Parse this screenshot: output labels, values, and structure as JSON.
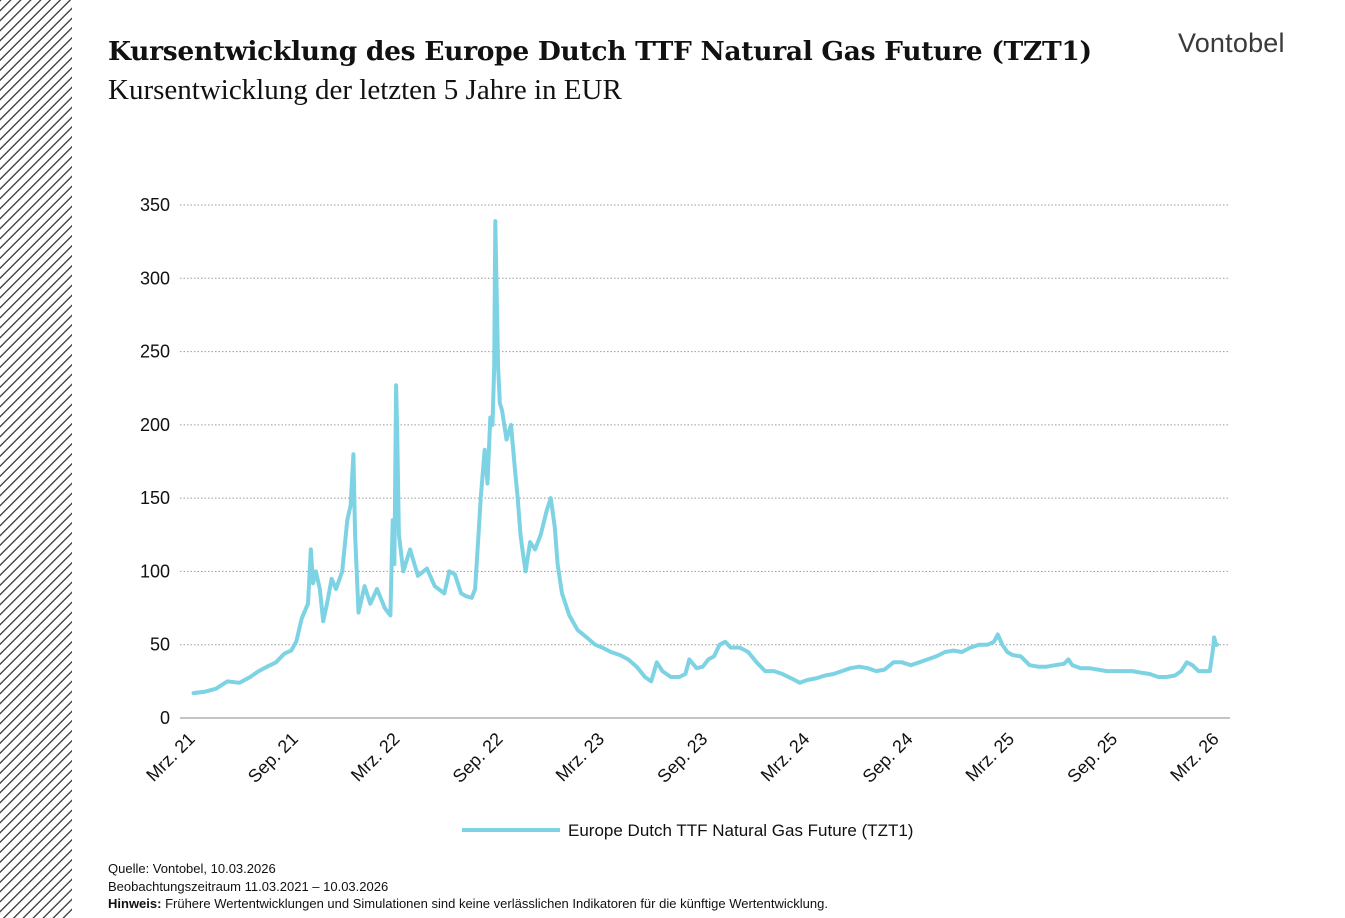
{
  "header": {
    "title": "Kursentwicklung des Europe Dutch TTF Natural Gas Future (TZT1)",
    "subtitle": "Kursentwicklung der letzten 5 Jahre in EUR",
    "logo": "Vontobel"
  },
  "footer": {
    "source": "Quelle: Vontobel, 10.03.2026",
    "period": "Beobachtungszeitraum  11.03.2021 – 10.03.2026",
    "note_label": "Hinweis:",
    "note_text": " Frühere Wertentwicklungen und Simulationen sind keine verlässlichen Indikatoren für die künftige Wertentwicklung."
  },
  "chart_data": {
    "type": "line",
    "title": "",
    "xlabel": "",
    "ylabel": "",
    "ylim": [
      0,
      350
    ],
    "yticks": [
      0,
      50,
      100,
      150,
      200,
      250,
      300,
      350
    ],
    "xticks": [
      {
        "date": "2021-03-01",
        "label": "Mrz. 21"
      },
      {
        "date": "2021-09-01",
        "label": "Sep. 21"
      },
      {
        "date": "2022-03-01",
        "label": "Mrz. 22"
      },
      {
        "date": "2022-09-01",
        "label": "Sep. 22"
      },
      {
        "date": "2023-03-01",
        "label": "Mrz. 23"
      },
      {
        "date": "2023-09-01",
        "label": "Sep. 23"
      },
      {
        "date": "2024-03-01",
        "label": "Mrz. 24"
      },
      {
        "date": "2024-09-01",
        "label": "Sep. 24"
      },
      {
        "date": "2025-03-01",
        "label": "Mrz. 25"
      },
      {
        "date": "2025-09-01",
        "label": "Sep. 25"
      },
      {
        "date": "2026-03-01",
        "label": "Mrz. 26"
      }
    ],
    "grid": "horizontal dotted",
    "legend_position": "bottom-center",
    "series": [
      {
        "name": "Europe Dutch TTF Natural Gas Future (TZT1)",
        "color": "#7dd3e3",
        "points": [
          [
            "2021-03-11",
            17
          ],
          [
            "2021-04-01",
            18
          ],
          [
            "2021-04-20",
            20
          ],
          [
            "2021-05-10",
            25
          ],
          [
            "2021-06-01",
            24
          ],
          [
            "2021-06-20",
            28
          ],
          [
            "2021-07-05",
            32
          ],
          [
            "2021-07-20",
            35
          ],
          [
            "2021-08-05",
            38
          ],
          [
            "2021-08-20",
            44
          ],
          [
            "2021-09-01",
            46
          ],
          [
            "2021-09-10",
            52
          ],
          [
            "2021-09-20",
            68
          ],
          [
            "2021-10-01",
            78
          ],
          [
            "2021-10-06",
            115
          ],
          [
            "2021-10-10",
            92
          ],
          [
            "2021-10-15",
            100
          ],
          [
            "2021-10-22",
            88
          ],
          [
            "2021-10-28",
            66
          ],
          [
            "2021-11-05",
            80
          ],
          [
            "2021-11-12",
            95
          ],
          [
            "2021-11-20",
            88
          ],
          [
            "2021-12-01",
            100
          ],
          [
            "2021-12-10",
            135
          ],
          [
            "2021-12-16",
            145
          ],
          [
            "2021-12-21",
            180
          ],
          [
            "2021-12-24",
            125
          ],
          [
            "2021-12-30",
            72
          ],
          [
            "2022-01-10",
            90
          ],
          [
            "2022-01-20",
            78
          ],
          [
            "2022-02-01",
            88
          ],
          [
            "2022-02-15",
            75
          ],
          [
            "2022-02-25",
            70
          ],
          [
            "2022-03-01",
            135
          ],
          [
            "2022-03-04",
            105
          ],
          [
            "2022-03-07",
            227
          ],
          [
            "2022-03-09",
            195
          ],
          [
            "2022-03-12",
            125
          ],
          [
            "2022-03-20",
            100
          ],
          [
            "2022-04-01",
            115
          ],
          [
            "2022-04-15",
            97
          ],
          [
            "2022-05-01",
            102
          ],
          [
            "2022-05-15",
            90
          ],
          [
            "2022-06-01",
            85
          ],
          [
            "2022-06-10",
            100
          ],
          [
            "2022-06-20",
            98
          ],
          [
            "2022-07-01",
            85
          ],
          [
            "2022-07-10",
            83
          ],
          [
            "2022-07-20",
            82
          ],
          [
            "2022-07-26",
            88
          ],
          [
            "2022-08-01",
            125
          ],
          [
            "2022-08-05",
            150
          ],
          [
            "2022-08-12",
            183
          ],
          [
            "2022-08-17",
            160
          ],
          [
            "2022-08-22",
            205
          ],
          [
            "2022-08-26",
            200
          ],
          [
            "2022-08-29",
            240
          ],
          [
            "2022-08-31",
            339
          ],
          [
            "2022-09-02",
            300
          ],
          [
            "2022-09-05",
            240
          ],
          [
            "2022-09-08",
            215
          ],
          [
            "2022-09-12",
            210
          ],
          [
            "2022-09-20",
            190
          ],
          [
            "2022-09-28",
            200
          ],
          [
            "2022-10-05",
            170
          ],
          [
            "2022-10-10",
            150
          ],
          [
            "2022-10-15",
            125
          ],
          [
            "2022-10-20",
            110
          ],
          [
            "2022-10-24",
            100
          ],
          [
            "2022-11-01",
            120
          ],
          [
            "2022-11-10",
            115
          ],
          [
            "2022-11-20",
            125
          ],
          [
            "2022-12-01",
            142
          ],
          [
            "2022-12-08",
            150
          ],
          [
            "2022-12-15",
            130
          ],
          [
            "2022-12-20",
            105
          ],
          [
            "2022-12-28",
            85
          ],
          [
            "2023-01-10",
            70
          ],
          [
            "2023-01-25",
            60
          ],
          [
            "2023-02-10",
            55
          ],
          [
            "2023-02-25",
            50
          ],
          [
            "2023-03-10",
            48
          ],
          [
            "2023-03-25",
            45
          ],
          [
            "2023-04-10",
            43
          ],
          [
            "2023-04-25",
            40
          ],
          [
            "2023-05-10",
            35
          ],
          [
            "2023-05-25",
            28
          ],
          [
            "2023-06-05",
            25
          ],
          [
            "2023-06-15",
            38
          ],
          [
            "2023-06-25",
            32
          ],
          [
            "2023-07-10",
            28
          ],
          [
            "2023-07-25",
            28
          ],
          [
            "2023-08-05",
            30
          ],
          [
            "2023-08-12",
            40
          ],
          [
            "2023-08-25",
            34
          ],
          [
            "2023-09-05",
            35
          ],
          [
            "2023-09-15",
            40
          ],
          [
            "2023-09-25",
            42
          ],
          [
            "2023-10-05",
            50
          ],
          [
            "2023-10-15",
            52
          ],
          [
            "2023-10-25",
            48
          ],
          [
            "2023-11-10",
            48
          ],
          [
            "2023-11-25",
            45
          ],
          [
            "2023-12-10",
            38
          ],
          [
            "2023-12-25",
            32
          ],
          [
            "2024-01-10",
            32
          ],
          [
            "2024-01-25",
            30
          ],
          [
            "2024-02-10",
            27
          ],
          [
            "2024-02-25",
            24
          ],
          [
            "2024-03-10",
            26
          ],
          [
            "2024-03-25",
            27
          ],
          [
            "2024-04-10",
            29
          ],
          [
            "2024-04-25",
            30
          ],
          [
            "2024-05-10",
            32
          ],
          [
            "2024-05-25",
            34
          ],
          [
            "2024-06-10",
            35
          ],
          [
            "2024-06-25",
            34
          ],
          [
            "2024-07-10",
            32
          ],
          [
            "2024-07-25",
            33
          ],
          [
            "2024-08-10",
            38
          ],
          [
            "2024-08-25",
            38
          ],
          [
            "2024-09-10",
            36
          ],
          [
            "2024-09-25",
            38
          ],
          [
            "2024-10-10",
            40
          ],
          [
            "2024-10-25",
            42
          ],
          [
            "2024-11-10",
            45
          ],
          [
            "2024-11-25",
            46
          ],
          [
            "2024-12-10",
            45
          ],
          [
            "2024-12-25",
            48
          ],
          [
            "2025-01-10",
            50
          ],
          [
            "2025-01-25",
            50
          ],
          [
            "2025-02-05",
            52
          ],
          [
            "2025-02-12",
            57
          ],
          [
            "2025-02-20",
            50
          ],
          [
            "2025-03-01",
            45
          ],
          [
            "2025-03-10",
            43
          ],
          [
            "2025-03-25",
            42
          ],
          [
            "2025-04-10",
            36
          ],
          [
            "2025-04-25",
            35
          ],
          [
            "2025-05-10",
            35
          ],
          [
            "2025-05-25",
            36
          ],
          [
            "2025-06-10",
            37
          ],
          [
            "2025-06-18",
            40
          ],
          [
            "2025-06-25",
            36
          ],
          [
            "2025-07-10",
            34
          ],
          [
            "2025-07-25",
            34
          ],
          [
            "2025-08-10",
            33
          ],
          [
            "2025-08-25",
            32
          ],
          [
            "2025-09-10",
            32
          ],
          [
            "2025-09-25",
            32
          ],
          [
            "2025-10-10",
            32
          ],
          [
            "2025-10-25",
            31
          ],
          [
            "2025-11-10",
            30
          ],
          [
            "2025-11-25",
            28
          ],
          [
            "2025-12-10",
            28
          ],
          [
            "2025-12-25",
            29
          ],
          [
            "2026-01-05",
            32
          ],
          [
            "2026-01-15",
            38
          ],
          [
            "2026-01-25",
            36
          ],
          [
            "2026-02-05",
            32
          ],
          [
            "2026-02-15",
            32
          ],
          [
            "2026-02-25",
            32
          ],
          [
            "2026-03-02",
            45
          ],
          [
            "2026-03-05",
            55
          ],
          [
            "2026-03-08",
            50
          ],
          [
            "2026-03-10",
            50
          ]
        ]
      }
    ]
  }
}
